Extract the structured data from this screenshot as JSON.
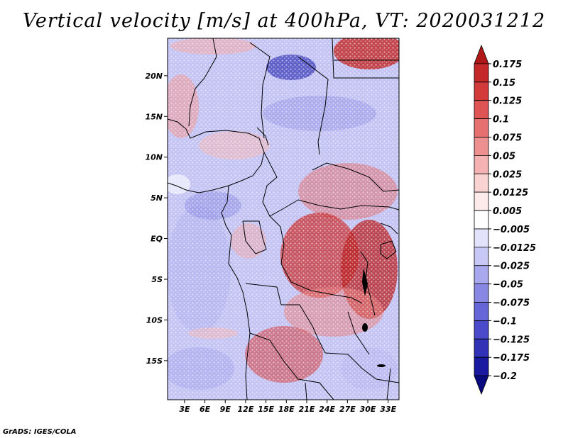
{
  "title": "Vertical velocity [m/s] at 400hPa, VT: 2020031212",
  "footer": "GrADS: IGES/COLA",
  "map": {
    "lat_labels": [
      "20N",
      "15N",
      "10N",
      "5N",
      "EQ",
      "5S",
      "10S",
      "15S"
    ],
    "lat_values": [
      20,
      15,
      10,
      5,
      0,
      -5,
      -10,
      -15
    ],
    "lon_labels": [
      "3E",
      "6E",
      "9E",
      "12E",
      "15E",
      "18E",
      "21E",
      "24E",
      "27E",
      "30E",
      "33E"
    ],
    "lon_values": [
      3,
      6,
      9,
      12,
      15,
      18,
      21,
      24,
      27,
      30,
      33
    ],
    "lon_range": [
      0.5,
      34.6
    ],
    "lat_range": [
      -19.8,
      24.6
    ]
  },
  "colorbar": {
    "labels": [
      "0.175",
      "0.15",
      "0.125",
      "0.1",
      "0.075",
      "0.05",
      "0.025",
      "0.0125",
      "0.005",
      "−0.005",
      "−0.0125",
      "−0.025",
      "−0.05",
      "−0.075",
      "−0.1",
      "−0.125",
      "−0.175",
      "−0.2"
    ],
    "colors": [
      "#b01818",
      "#c42828",
      "#d33a3a",
      "#de5454",
      "#e67070",
      "#ee9090",
      "#f4b2b2",
      "#f9d2d2",
      "#fdeaea",
      "#ffffff",
      "#e2e2fb",
      "#c8c8f6",
      "#a8a8ee",
      "#8888e4",
      "#6666d8",
      "#4a4acb",
      "#3232b6",
      "#1a1aa0",
      "#0a0a80"
    ]
  }
}
